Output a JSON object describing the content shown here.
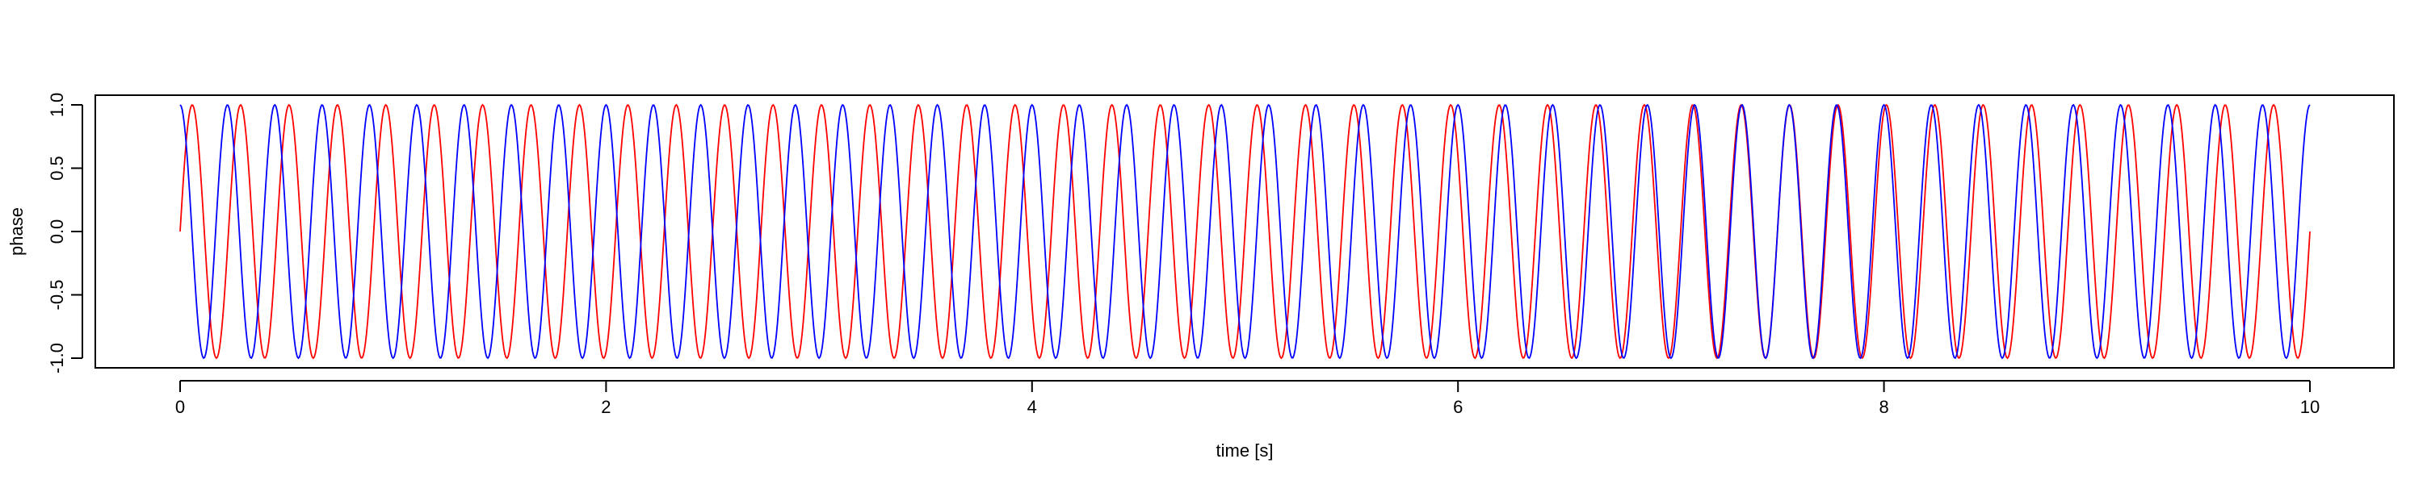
{
  "chart_data": {
    "type": "line",
    "title": "",
    "xlabel": "time [s]",
    "ylabel": "phase",
    "xlim": [
      0,
      10
    ],
    "ylim": [
      -1,
      1
    ],
    "x_ticks": [
      0,
      2,
      4,
      6,
      8,
      10
    ],
    "x_tick_labels": [
      "0",
      "2",
      "4",
      "6",
      "8",
      "10"
    ],
    "y_ticks": [
      -1.0,
      -0.5,
      0.0,
      0.5,
      1.0
    ],
    "y_tick_labels": [
      "-1.0",
      "-0.5",
      "0.0",
      "0.5",
      "1.0"
    ],
    "grid": false,
    "legend": "none",
    "sample_step": 0.005,
    "series": [
      {
        "function": "sine",
        "frequency_hz": 4.4,
        "phase_rad": 0,
        "x_start": 0,
        "x_end": 10,
        "color": "#ff0000"
      },
      {
        "function": "cosine",
        "frequency_hz": 4.5,
        "phase_rad": 0,
        "x_start": 0,
        "x_end": 10,
        "color": "#0000ff"
      }
    ]
  }
}
